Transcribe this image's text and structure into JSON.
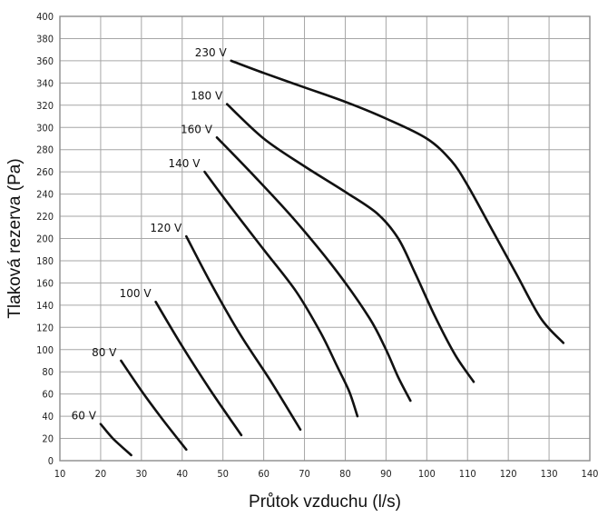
{
  "chart_data": {
    "type": "line",
    "title": "",
    "xlabel": "Průtok vzduchu (l/s)",
    "ylabel": "Tlaková rezerva (Pa)",
    "xlim": [
      10,
      140
    ],
    "ylim": [
      0,
      400
    ],
    "xticks": [
      10,
      20,
      30,
      40,
      50,
      60,
      70,
      80,
      90,
      100,
      110,
      120,
      130,
      140
    ],
    "yticks": [
      0,
      20,
      40,
      60,
      80,
      100,
      120,
      140,
      160,
      180,
      200,
      220,
      240,
      260,
      280,
      300,
      320,
      340,
      360,
      380,
      400
    ],
    "grid": true,
    "series": [
      {
        "name": "60 V",
        "points": [
          [
            20,
            33
          ],
          [
            23,
            20
          ],
          [
            27.5,
            5
          ]
        ]
      },
      {
        "name": "80 V",
        "points": [
          [
            25,
            90
          ],
          [
            30,
            63
          ],
          [
            35,
            38
          ],
          [
            41,
            10
          ]
        ]
      },
      {
        "name": "100 V",
        "points": [
          [
            33.5,
            143
          ],
          [
            40,
            103
          ],
          [
            47,
            63
          ],
          [
            54.5,
            23
          ]
        ]
      },
      {
        "name": "120 V",
        "points": [
          [
            41,
            202
          ],
          [
            47,
            160
          ],
          [
            54,
            115
          ],
          [
            62,
            70
          ],
          [
            69,
            28
          ]
        ]
      },
      {
        "name": "140 V",
        "points": [
          [
            45.5,
            260
          ],
          [
            52,
            228
          ],
          [
            60,
            190
          ],
          [
            68,
            152
          ],
          [
            74,
            115
          ],
          [
            78,
            85
          ],
          [
            81,
            62
          ],
          [
            83,
            40
          ]
        ]
      },
      {
        "name": "160 V",
        "points": [
          [
            48.5,
            291
          ],
          [
            58,
            255
          ],
          [
            68,
            215
          ],
          [
            78,
            170
          ],
          [
            86,
            128
          ],
          [
            90,
            100
          ],
          [
            93,
            75
          ],
          [
            96,
            54
          ]
        ]
      },
      {
        "name": "180 V",
        "points": [
          [
            51,
            321
          ],
          [
            60,
            290
          ],
          [
            70,
            265
          ],
          [
            80,
            242
          ],
          [
            88,
            222
          ],
          [
            93,
            200
          ],
          [
            97,
            170
          ],
          [
            102,
            130
          ],
          [
            107,
            95
          ],
          [
            111.5,
            71
          ]
        ]
      },
      {
        "name": "230 V",
        "points": [
          [
            52,
            360
          ],
          [
            60,
            349
          ],
          [
            70,
            336
          ],
          [
            80,
            323
          ],
          [
            90,
            308
          ],
          [
            100,
            290
          ],
          [
            106,
            270
          ],
          [
            110,
            248
          ],
          [
            116,
            208
          ],
          [
            122,
            168
          ],
          [
            128,
            128
          ],
          [
            133.5,
            106
          ]
        ]
      }
    ]
  }
}
